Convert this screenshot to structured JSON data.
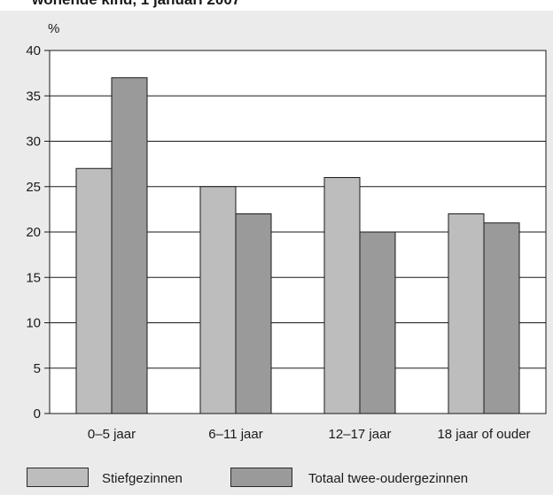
{
  "title": "wonende kind, 1 januari 2007",
  "chart_data": {
    "type": "bar",
    "ylabel": "%",
    "ylim": [
      0,
      40
    ],
    "yticks": [
      0,
      5,
      10,
      15,
      20,
      25,
      30,
      35,
      40
    ],
    "categories": [
      "0–5 jaar",
      "6–11 jaar",
      "12–17 jaar",
      "18 jaar of ouder"
    ],
    "series": [
      {
        "name": "Stiefgezinnen",
        "values": [
          27,
          25,
          26,
          22
        ],
        "color": "#bdbdbd"
      },
      {
        "name": "Totaal twee-oudergezinnen",
        "values": [
          37,
          22,
          20,
          21
        ],
        "color": "#9a9a9a"
      }
    ],
    "grid": "horizontal",
    "legend": "bottom"
  },
  "colors": {
    "background": "#ebebeb",
    "plot": "#ffffff",
    "axis": "#1a1a1a"
  }
}
